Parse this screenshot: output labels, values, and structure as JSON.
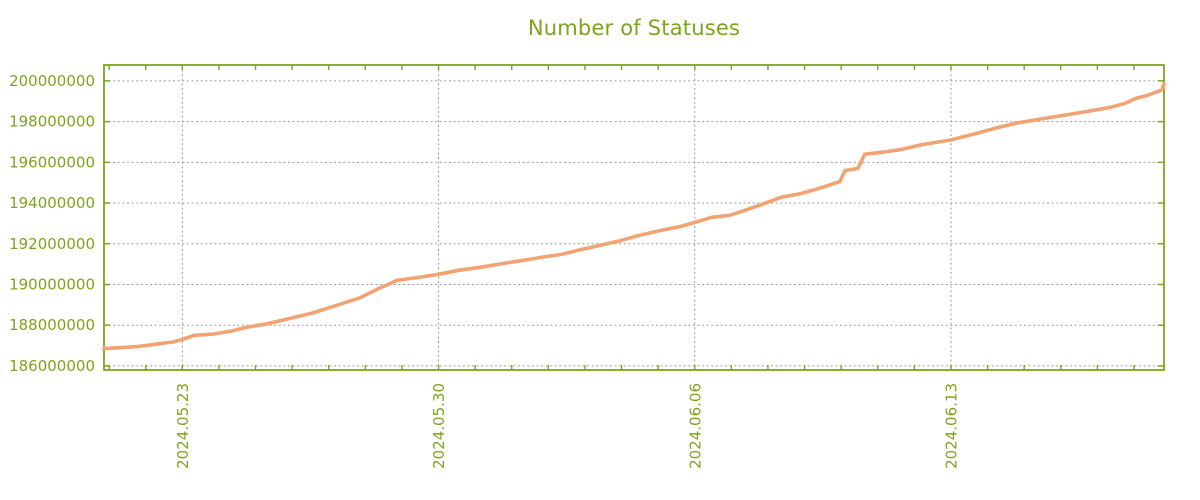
{
  "chart_data": {
    "type": "line",
    "title": "Number of Statuses",
    "xlabel": "",
    "ylabel": "",
    "legend": "none",
    "grid": "dotted",
    "x_range": [
      0,
      28.96
    ],
    "x_ticks": [
      {
        "t": 2.14,
        "label": "2024.05.23"
      },
      {
        "t": 9.14,
        "label": "2024.05.30"
      },
      {
        "t": 16.14,
        "label": "2024.06.06"
      },
      {
        "t": 23.14,
        "label": "2024.06.13"
      }
    ],
    "x_minor_ticks": {
      "start": 0.14,
      "step": 1,
      "unit": "day"
    },
    "y_range": [
      185800000,
      200780000
    ],
    "y_ticks": [
      200000000,
      198000000,
      196000000,
      194000000,
      192000000,
      190000000,
      188000000,
      186000000
    ],
    "colors": {
      "axis_and_text": "#7da41c",
      "line": "#f3a272",
      "grid": "#9c9c9c",
      "background": "#ffffff"
    },
    "series": [
      {
        "name": "statuses",
        "points": [
          [
            0.0,
            186850000
          ],
          [
            0.5,
            186900000
          ],
          [
            0.9,
            186950000
          ],
          [
            1.4,
            187060000
          ],
          [
            1.9,
            187180000
          ],
          [
            2.14,
            187300000
          ],
          [
            2.45,
            187500000
          ],
          [
            3.0,
            187570000
          ],
          [
            3.5,
            187720000
          ],
          [
            3.9,
            187900000
          ],
          [
            4.4,
            188050000
          ],
          [
            5.0,
            188300000
          ],
          [
            5.7,
            188600000
          ],
          [
            6.4,
            189000000
          ],
          [
            7.0,
            189350000
          ],
          [
            7.5,
            189800000
          ],
          [
            7.76,
            190000000
          ],
          [
            8.0,
            190200000
          ],
          [
            8.6,
            190350000
          ],
          [
            9.14,
            190500000
          ],
          [
            9.7,
            190700000
          ],
          [
            10.3,
            190850000
          ],
          [
            10.8,
            191000000
          ],
          [
            11.5,
            191200000
          ],
          [
            12.0,
            191350000
          ],
          [
            12.5,
            191480000
          ],
          [
            13.0,
            191700000
          ],
          [
            13.5,
            191900000
          ],
          [
            14.1,
            192150000
          ],
          [
            14.6,
            192400000
          ],
          [
            15.2,
            192650000
          ],
          [
            15.75,
            192850000
          ],
          [
            16.14,
            193050000
          ],
          [
            16.6,
            193300000
          ],
          [
            17.1,
            193400000
          ],
          [
            17.6,
            193700000
          ],
          [
            18.0,
            193950000
          ],
          [
            18.5,
            194280000
          ],
          [
            19.0,
            194450000
          ],
          [
            19.5,
            194700000
          ],
          [
            20.1,
            195050000
          ],
          [
            20.25,
            195600000
          ],
          [
            20.6,
            195700000
          ],
          [
            20.78,
            196400000
          ],
          [
            21.3,
            196500000
          ],
          [
            21.75,
            196620000
          ],
          [
            22.3,
            196850000
          ],
          [
            23.14,
            197100000
          ],
          [
            23.8,
            197400000
          ],
          [
            24.4,
            197700000
          ],
          [
            25.0,
            197950000
          ],
          [
            25.85,
            198200000
          ],
          [
            26.67,
            198440000
          ],
          [
            27.5,
            198700000
          ],
          [
            27.9,
            198900000
          ],
          [
            28.2,
            199150000
          ],
          [
            28.5,
            199280000
          ],
          [
            28.75,
            199450000
          ],
          [
            28.9,
            199550000
          ],
          [
            28.96,
            199850000
          ]
        ]
      }
    ]
  }
}
